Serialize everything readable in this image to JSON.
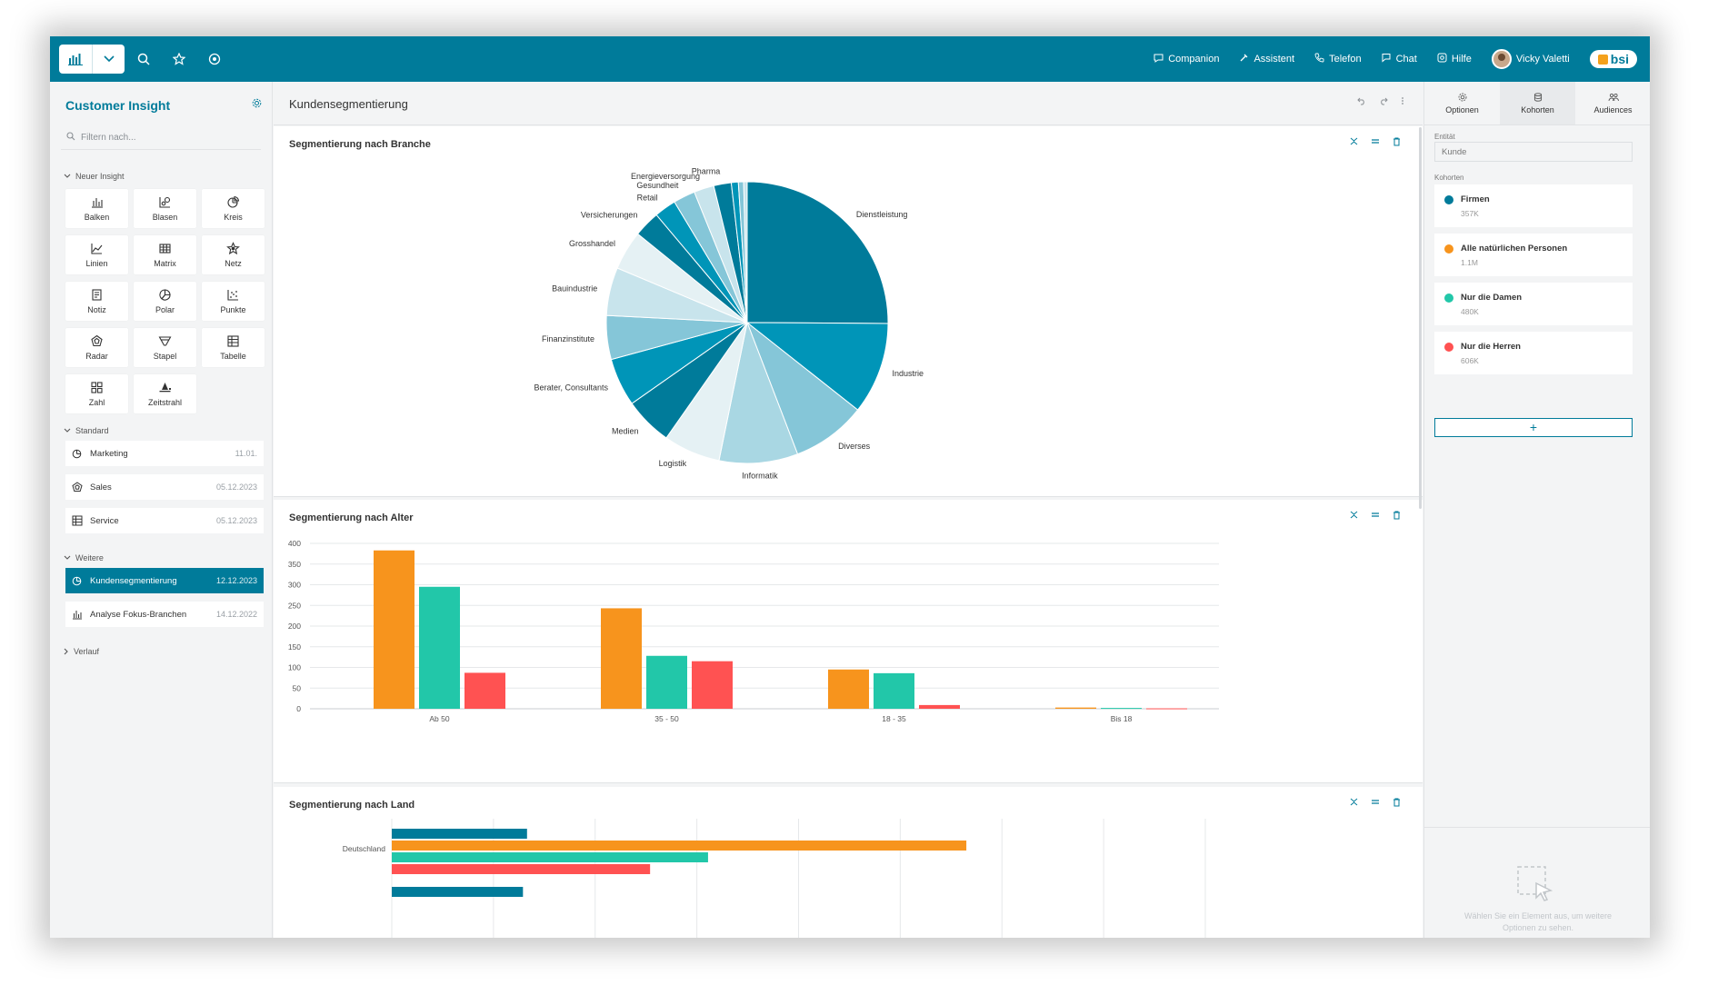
{
  "topbar": {
    "nav": [
      {
        "label": "Companion",
        "icon": "companion-icon"
      },
      {
        "label": "Assistent",
        "icon": "assistant-icon"
      },
      {
        "label": "Telefon",
        "icon": "phone-icon"
      },
      {
        "label": "Chat",
        "icon": "chat-icon"
      },
      {
        "label": "Hilfe",
        "icon": "help-icon"
      }
    ],
    "user_name": "Vicky Valetti",
    "brand": "bsi"
  },
  "sidebar": {
    "title": "Customer Insight",
    "filter_placeholder": "Filtern nach...",
    "new_insight_label": "Neuer Insight",
    "tiles": [
      {
        "label": "Balken",
        "icon": "bar-chart-icon"
      },
      {
        "label": "Blasen",
        "icon": "bubble-chart-icon"
      },
      {
        "label": "Kreis",
        "icon": "pie-chart-icon"
      },
      {
        "label": "Linien",
        "icon": "line-chart-icon"
      },
      {
        "label": "Matrix",
        "icon": "matrix-icon"
      },
      {
        "label": "Netz",
        "icon": "network-icon"
      },
      {
        "label": "Notiz",
        "icon": "note-icon"
      },
      {
        "label": "Polar",
        "icon": "polar-chart-icon"
      },
      {
        "label": "Punkte",
        "icon": "scatter-icon"
      },
      {
        "label": "Radar",
        "icon": "radar-icon"
      },
      {
        "label": "Stapel",
        "icon": "funnel-icon"
      },
      {
        "label": "Tabelle",
        "icon": "table-icon"
      },
      {
        "label": "Zahl",
        "icon": "number-grid-icon"
      },
      {
        "label": "Zeitstrahl",
        "icon": "timeline-icon"
      }
    ],
    "standard_label": "Standard",
    "standard_items": [
      {
        "label": "Marketing",
        "date": "11.01.",
        "icon": "pie-chart-icon"
      },
      {
        "label": "Sales",
        "date": "05.12.2023",
        "icon": "radar-icon"
      },
      {
        "label": "Service",
        "date": "05.12.2023",
        "icon": "table-icon"
      }
    ],
    "weitere_label": "Weitere",
    "weitere_items": [
      {
        "label": "Kundensegmentierung",
        "date": "12.12.2023",
        "icon": "pie-chart-icon"
      },
      {
        "label": "Analyse Fokus-Branchen",
        "date": "14.12.2022",
        "icon": "bar-chart-icon"
      }
    ],
    "verlauf_label": "Verlauf"
  },
  "main": {
    "title": "Kundensegmentierung",
    "cards": {
      "branche": "Segmentierung nach Branche",
      "alter": "Segmentierung nach Alter",
      "land": "Segmentierung nach Land"
    }
  },
  "right_panel": {
    "tabs": [
      {
        "label": "Optionen",
        "icon": "options-icon"
      },
      {
        "label": "Kohorten",
        "icon": "database-icon"
      },
      {
        "label": "Audiences",
        "icon": "audiences-icon"
      }
    ],
    "entity_label": "Entität",
    "entity_value": "Kunde",
    "cohorts_label": "Kohorten",
    "cohorts": [
      {
        "name": "Firmen",
        "count": "357K",
        "color": "#007b9a"
      },
      {
        "name": "Alle natürlichen Personen",
        "count": "1.1M",
        "color": "#f7941d"
      },
      {
        "name": "Nur die Damen",
        "count": "480K",
        "color": "#22c7a9"
      },
      {
        "name": "Nur die Herren",
        "count": "606K",
        "color": "#ff5252"
      }
    ],
    "add_label": "+",
    "hint_line1": "Wählen Sie ein Element aus, um weitere",
    "hint_line2": "Optionen zu sehen."
  },
  "chart_data": [
    {
      "type": "pie",
      "title": "Segmentierung nach Branche",
      "categories": [
        "Dienstleistung",
        "Industrie",
        "Diverses",
        "Informatik",
        "Logistik",
        "Medien",
        "Berater, Consultants",
        "Finanzinstitute",
        "Bauindustrie",
        "Grosshandel",
        "Versicherungen",
        "Retail",
        "Gesundheit",
        "Energieversorgung",
        "Pharma"
      ],
      "values": [
        25,
        10.5,
        8.5,
        9,
        6.5,
        5.5,
        5.5,
        5,
        5.5,
        4.5,
        3,
        2.5,
        2.5,
        2.3,
        2
      ],
      "colors": [
        "#007b9a",
        "#0095b8",
        "#85c6d8",
        "#a9d7e3",
        "#e5f1f4",
        "#007b9a",
        "#0095b8",
        "#85c6d8",
        "#c8e4ec",
        "#e5f1f4",
        "#007b9a",
        "#0095b8",
        "#85c6d8",
        "#c8e4ec",
        "#007b9a"
      ],
      "extra_slices": [
        0.8,
        0.6,
        0.4
      ],
      "extra_colors": [
        "#0095b8",
        "#85c6d8",
        "#c8e4ec"
      ]
    },
    {
      "type": "bar",
      "title": "Segmentierung nach Alter",
      "categories": [
        "Ab 50",
        "35 - 50",
        "18 - 35",
        "Bis 18"
      ],
      "series": [
        {
          "name": "Alle natürlichen Personen",
          "color": "#f7941d",
          "values": [
            383,
            243,
            95,
            3
          ]
        },
        {
          "name": "Nur die Damen",
          "color": "#22c7a9",
          "values": [
            295,
            128,
            86,
            2
          ]
        },
        {
          "name": "Nur die Herren",
          "color": "#ff5252",
          "values": [
            87,
            115,
            9,
            1
          ]
        }
      ],
      "ylim": [
        0,
        400
      ],
      "yticks": [
        0,
        50,
        100,
        150,
        200,
        250,
        300,
        350,
        400
      ]
    },
    {
      "type": "bar",
      "orientation": "horizontal",
      "title": "Segmentierung nach Land",
      "categories": [
        "Deutschland"
      ],
      "series": [
        {
          "name": "Firmen",
          "color": "#007b9a",
          "values": [
            133
          ]
        },
        {
          "name": "Alle natürlichen Personen",
          "color": "#f7941d",
          "values": [
            565
          ]
        },
        {
          "name": "Nur die Damen",
          "color": "#22c7a9",
          "values": [
            311
          ]
        },
        {
          "name": "Nur die Herren",
          "color": "#ff5252",
          "values": [
            254
          ]
        }
      ],
      "next_category_partial": {
        "color": "#007b9a",
        "value": 129
      },
      "xlim": [
        0,
        800
      ]
    }
  ]
}
